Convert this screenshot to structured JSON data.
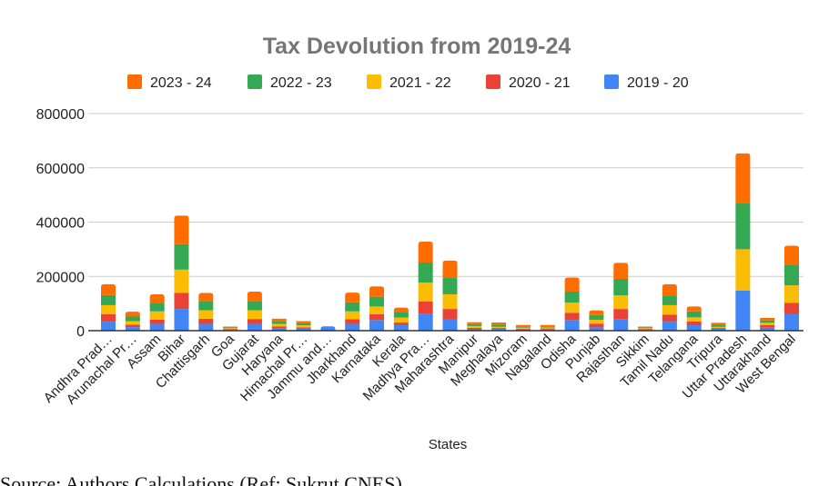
{
  "chart_data": {
    "type": "bar",
    "stacked": true,
    "title": "Tax Devolution from 2019-24",
    "xlabel": "States",
    "ylabel": "",
    "ylim": [
      0,
      800000
    ],
    "yticks": [
      0,
      200000,
      400000,
      600000,
      800000
    ],
    "ytick_labels": [
      "0",
      "200000",
      "400000",
      "600000",
      "800000"
    ],
    "grid": true,
    "legend_position": "top",
    "categories": [
      "Andhra Prad…",
      "Arunachal Pr…",
      "Assam",
      "Bihar",
      "Chattisgarh",
      "Goa",
      "Gujarat",
      "Haryana",
      "Himachal Pr…",
      "Jammu and…",
      "Jharkhand",
      "Karnataka",
      "Kerala",
      "Madhya Pra…",
      "Maharashtra",
      "Manipur",
      "Meghalaya",
      "Mizoram",
      "Nagaland",
      "Odisha",
      "Punjab",
      "Rajasthan",
      "Sikkim",
      "Tamil Nadu",
      "Telangana",
      "Tripura",
      "Uttar Pradesh",
      "Uttarakhand",
      "West Bengal"
    ],
    "series": [
      {
        "name": "2019 - 20",
        "color": "#4285f4",
        "values": [
          33000,
          13000,
          25000,
          80000,
          25000,
          3000,
          25000,
          9000,
          7000,
          16000,
          25000,
          39000,
          20000,
          61000,
          42000,
          5000,
          7000,
          4000,
          4000,
          39000,
          12000,
          43000,
          3000,
          33000,
          20000,
          7000,
          148000,
          11000,
          62000
        ]
      },
      {
        "name": "2020 - 21",
        "color": "#ea4335",
        "values": [
          28000,
          9000,
          16000,
          59000,
          19000,
          3000,
          18000,
          7000,
          5000,
          0,
          17000,
          22000,
          10000,
          47000,
          38000,
          5000,
          3000,
          3000,
          4000,
          27000,
          14000,
          37000,
          3000,
          26000,
          14000,
          3000,
          0,
          10000,
          40000
        ]
      },
      {
        "name": "2021 - 22",
        "color": "#fbbc04",
        "values": [
          33000,
          13000,
          30000,
          86000,
          31000,
          3000,
          32000,
          9000,
          8000,
          0,
          29000,
          28000,
          18000,
          69000,
          54000,
          7000,
          4000,
          4000,
          4000,
          37000,
          14000,
          50000,
          3000,
          35000,
          15000,
          4000,
          152000,
          8000,
          65000
        ]
      },
      {
        "name": "2022 - 23",
        "color": "#34a853",
        "values": [
          37000,
          17000,
          32000,
          94000,
          34000,
          3000,
          34000,
          11000,
          8000,
          0,
          33000,
          36000,
          19000,
          74000,
          60000,
          7000,
          8000,
          5000,
          4000,
          41000,
          18000,
          61000,
          3000,
          36000,
          22000,
          8000,
          170000,
          9000,
          74000
        ]
      },
      {
        "name": "2023 - 24",
        "color": "#ff6d01",
        "values": [
          40000,
          18000,
          31000,
          105000,
          30000,
          3000,
          35000,
          8000,
          7000,
          0,
          36000,
          38000,
          18000,
          77000,
          64000,
          7000,
          8000,
          5000,
          5000,
          52000,
          17000,
          59000,
          3000,
          41000,
          18000,
          7000,
          183000,
          9000,
          72000
        ]
      }
    ],
    "legend_order": [
      "2023 - 24",
      "2022 - 23",
      "2021 - 22",
      "2020 - 21",
      "2019 - 20"
    ]
  },
  "source_note": "Source: Authors Calculations (Ref: Sukrut CNES)"
}
